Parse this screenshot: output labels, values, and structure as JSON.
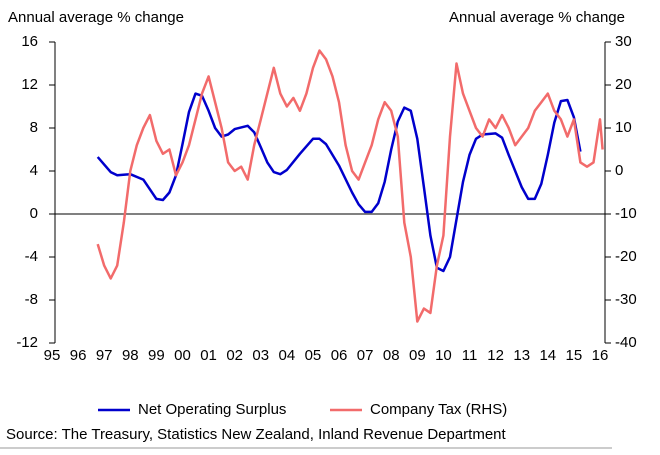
{
  "chart_data": {
    "type": "line",
    "y_label": "Annual average % change",
    "y2_label": "Annual average % change",
    "source": "Source: The Treasury, Statistics New Zealand, Inland Revenue Department",
    "xlim": [
      1995,
      2016
    ],
    "xticks": [
      {
        "value": 1995,
        "label": "95"
      },
      {
        "value": 1996,
        "label": "96"
      },
      {
        "value": 1997,
        "label": "97"
      },
      {
        "value": 1998,
        "label": "98"
      },
      {
        "value": 1999,
        "label": "99"
      },
      {
        "value": 2000,
        "label": "00"
      },
      {
        "value": 2001,
        "label": "01"
      },
      {
        "value": 2002,
        "label": "02"
      },
      {
        "value": 2003,
        "label": "03"
      },
      {
        "value": 2004,
        "label": "04"
      },
      {
        "value": 2005,
        "label": "05"
      },
      {
        "value": 2006,
        "label": "06"
      },
      {
        "value": 2007,
        "label": "07"
      },
      {
        "value": 2008,
        "label": "08"
      },
      {
        "value": 2009,
        "label": "09"
      },
      {
        "value": 2010,
        "label": "10"
      },
      {
        "value": 2011,
        "label": "11"
      },
      {
        "value": 2012,
        "label": "12"
      },
      {
        "value": 2013,
        "label": "13"
      },
      {
        "value": 2014,
        "label": "14"
      },
      {
        "value": 2015,
        "label": "15"
      },
      {
        "value": 2016,
        "label": "16"
      }
    ],
    "ylim": [
      -12,
      16
    ],
    "yticks": [
      16,
      12,
      8,
      4,
      0,
      -4,
      -8,
      -12
    ],
    "y2lim": [
      -40,
      30
    ],
    "y2ticks": [
      30,
      20,
      10,
      0,
      -10,
      -20,
      -30,
      -40
    ],
    "series": [
      {
        "name": "Net Operating Surplus",
        "color": "#0000cc",
        "axis": "y",
        "x": [
          1996.75,
          1997,
          1997.25,
          1997.5,
          1998,
          1998.5,
          1999,
          1999.25,
          1999.5,
          1999.75,
          2000,
          2000.25,
          2000.5,
          2000.75,
          2001,
          2001.25,
          2001.5,
          2001.75,
          2002,
          2002.5,
          2002.75,
          2003,
          2003.25,
          2003.5,
          2003.75,
          2004,
          2004.5,
          2005,
          2005.25,
          2005.5,
          2006,
          2006.5,
          2006.75,
          2007,
          2007.25,
          2007.5,
          2007.75,
          2008,
          2008.25,
          2008.5,
          2008.75,
          2009,
          2009.25,
          2009.5,
          2009.75,
          2010,
          2010.25,
          2010.5,
          2010.75,
          2011,
          2011.25,
          2011.5,
          2012,
          2012.25,
          2012.5,
          2013,
          2013.25,
          2013.5,
          2013.75,
          2014,
          2014.25,
          2014.5,
          2014.75,
          2015,
          2015.25
        ],
        "values": [
          5.3,
          4.6,
          3.9,
          3.6,
          3.7,
          3.2,
          1.4,
          1.3,
          2.0,
          3.6,
          6.5,
          9.5,
          11.2,
          11.0,
          9.6,
          8.0,
          7.2,
          7.4,
          7.9,
          8.2,
          7.6,
          6.2,
          4.8,
          3.9,
          3.7,
          4.1,
          5.6,
          7.0,
          7.0,
          6.5,
          4.5,
          2.0,
          0.9,
          0.2,
          0.2,
          1.0,
          3.0,
          6.0,
          8.6,
          9.9,
          9.6,
          7.0,
          2.5,
          -2.0,
          -5.0,
          -5.3,
          -4.0,
          -0.5,
          3.0,
          5.5,
          7.0,
          7.4,
          7.5,
          7.1,
          5.5,
          2.5,
          1.4,
          1.4,
          2.8,
          5.5,
          8.5,
          10.5,
          10.6,
          9.0,
          5.8
        ]
      },
      {
        "name": "Company Tax (RHS)",
        "color": "#f26b6b",
        "axis": "y2",
        "x": [
          1996.75,
          1997,
          1997.25,
          1997.5,
          1997.75,
          1998,
          1998.25,
          1998.5,
          1998.75,
          1999,
          1999.25,
          1999.5,
          1999.75,
          2000,
          2000.25,
          2000.5,
          2000.75,
          2001,
          2001.25,
          2001.5,
          2001.75,
          2002,
          2002.25,
          2002.5,
          2002.75,
          2003,
          2003.25,
          2003.5,
          2003.75,
          2004,
          2004.25,
          2004.5,
          2004.75,
          2005,
          2005.25,
          2005.5,
          2005.75,
          2006,
          2006.25,
          2006.5,
          2006.75,
          2007,
          2007.25,
          2007.5,
          2007.75,
          2008,
          2008.25,
          2008.5,
          2008.75,
          2009,
          2009.25,
          2009.5,
          2009.75,
          2010,
          2010.25,
          2010.5,
          2010.75,
          2011,
          2011.25,
          2011.5,
          2011.75,
          2012,
          2012.25,
          2012.5,
          2012.75,
          2013,
          2013.25,
          2013.5,
          2013.75,
          2014,
          2014.25,
          2014.5,
          2014.75,
          2015,
          2015.25,
          2015.5,
          2015.75,
          2016,
          2016.1
        ],
        "values": [
          -17,
          -22,
          -25,
          -22,
          -12,
          0,
          6,
          10,
          13,
          7,
          4,
          5,
          -1,
          2,
          6,
          12,
          18,
          22,
          16,
          10,
          2,
          0,
          1,
          -2,
          6,
          12,
          18,
          24,
          18,
          15,
          17,
          14,
          18,
          24,
          28,
          26,
          22,
          16,
          6,
          0,
          -2,
          2,
          6,
          12,
          16,
          14,
          8,
          -12,
          -20,
          -35,
          -32,
          -33,
          -22,
          -15,
          8,
          25,
          18,
          14,
          10,
          8,
          12,
          10,
          13,
          10,
          6,
          8,
          10,
          14,
          16,
          18,
          14,
          12,
          8,
          12,
          2,
          1,
          2,
          12,
          5
        ]
      }
    ]
  }
}
